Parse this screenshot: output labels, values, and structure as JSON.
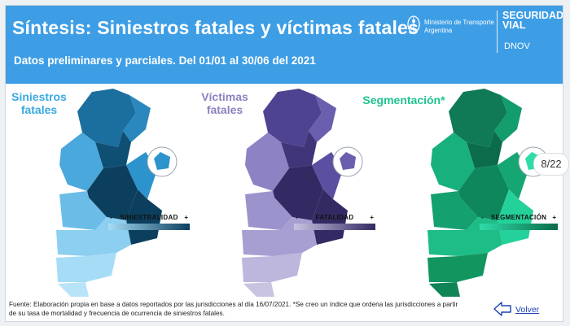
{
  "header": {
    "title": "Síntesis: Siniestros fatales y víctimas fatales",
    "subtitle": "Datos preliminares y parciales. Del 01/01 al 30/06 del 2021",
    "ministry_line1": "Ministerio de Transporte",
    "ministry_line2": "Argentina",
    "brand_line1": "SEGURIDAD",
    "brand_line2": "VIAL",
    "brand_sub": "DNOV"
  },
  "maps": [
    {
      "title_line1": "Siniestros",
      "title_line2": "fatales",
      "scale_label": "SINIESTRALIDAD",
      "scale_minus": "-",
      "scale_plus": "+",
      "color_light": "#a6dcf5",
      "color_dark": "#0c3f5e",
      "title_color": "#39a8e0"
    },
    {
      "title_line1": "Víctimas",
      "title_line2": "fatales",
      "scale_label": "FATALIDAD",
      "scale_minus": "-",
      "scale_plus": "+",
      "color_light": "#c9c3e2",
      "color_dark": "#342a63",
      "title_color": "#8b83bf"
    },
    {
      "title_line1": "Segmentación*",
      "title_line2": "",
      "scale_label": "SEGMENTACIÓN",
      "scale_minus": "-",
      "scale_plus": "+",
      "color_light": "#2fdca8",
      "color_dark": "#0b6b4a",
      "title_color": "#1fc38f"
    }
  ],
  "page_indicator": "8/22",
  "footer": {
    "source_text": "Fuente: Elaboración propia en base a datos reportados por las jurisdicciones al día 16/07/2021. *Se creo un índice que ordena las jurisdicciones a partir de su tasa de mortalidad y frecuencia de ocurrencia de siniestros fatales."
  },
  "back_link": "Volver",
  "icons": {
    "seal": "argentina-seal-icon",
    "back": "back-arrow-icon"
  }
}
